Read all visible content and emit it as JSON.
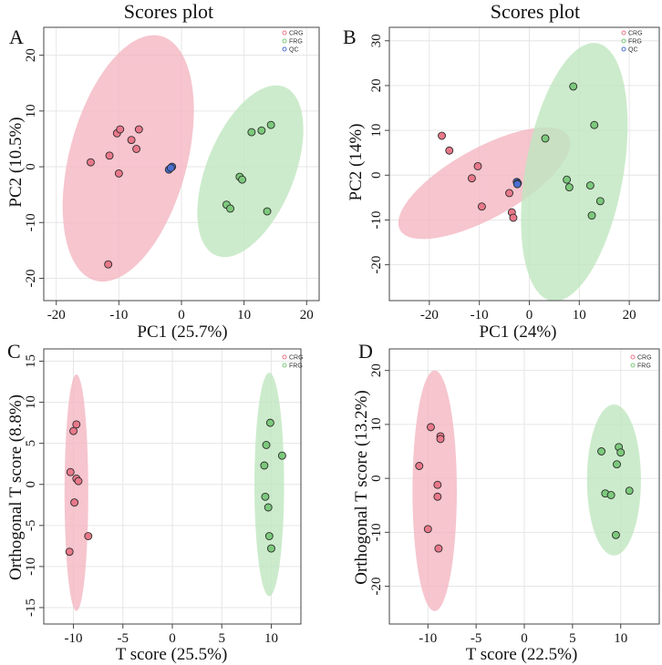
{
  "chart_data": [
    {
      "type": "scatter",
      "panel": "A",
      "title": "Scores plot",
      "xlabel": "PC1 (25.7%)",
      "ylabel": "PC2 (10.5%)",
      "xlim": [
        -22,
        22
      ],
      "ylim": [
        -24,
        25
      ],
      "xticks": [
        -20,
        -10,
        0,
        10,
        20
      ],
      "yticks": [
        -20,
        -10,
        0,
        10,
        20
      ],
      "legend": [
        "CRG",
        "FRG",
        "QC"
      ],
      "series": [
        {
          "name": "CRG",
          "color": "#e8788a",
          "points": [
            [
              -14.5,
              0.8
            ],
            [
              -11.5,
              2
            ],
            [
              -10.3,
              6
            ],
            [
              -9.8,
              6.7
            ],
            [
              -10,
              -1.2
            ],
            [
              -8,
              4.8
            ],
            [
              -7.2,
              3.2
            ],
            [
              -6.8,
              6.7
            ],
            [
              -11.7,
              -17.5
            ]
          ]
        },
        {
          "name": "FRG",
          "color": "#7cc97c",
          "points": [
            [
              7.2,
              -6.8
            ],
            [
              7.8,
              -7.5
            ],
            [
              9.3,
              -1.8
            ],
            [
              9.7,
              -2.3
            ],
            [
              11.2,
              6.2
            ],
            [
              12.8,
              6.5
            ],
            [
              14.3,
              7.5
            ],
            [
              13.7,
              -8
            ]
          ]
        },
        {
          "name": "QC",
          "color": "#4a6fd1",
          "points": [
            [
              -2,
              -0.5
            ],
            [
              -1.5,
              0
            ],
            [
              -1.7,
              -0.2
            ]
          ]
        }
      ],
      "ellipses": [
        {
          "group": "CRG",
          "color": "#f4b6c2",
          "cx": -8.5,
          "cy": 1.5,
          "rx": 9.4,
          "ry": 22.7,
          "angle": 15
        },
        {
          "group": "FRG",
          "color": "#bfe6bf",
          "cx": 11,
          "cy": -0.8,
          "rx": 7,
          "ry": 16.3,
          "angle": 22
        }
      ]
    },
    {
      "type": "scatter",
      "panel": "B",
      "title": "Scores plot",
      "xlabel": "PC1 (24%)",
      "ylabel": "PC2 (14%)",
      "xlim": [
        -28,
        26
      ],
      "ylim": [
        -28,
        33
      ],
      "xticks": [
        -20,
        -10,
        0,
        10,
        20
      ],
      "yticks": [
        -20,
        -10,
        0,
        10,
        20,
        30
      ],
      "legend": [
        "CRG",
        "FRG",
        "QC"
      ],
      "series": [
        {
          "name": "CRG",
          "color": "#e8788a",
          "points": [
            [
              -17.5,
              8.8
            ],
            [
              -16,
              5.5
            ],
            [
              -10.3,
              2
            ],
            [
              -11.5,
              -0.7
            ],
            [
              -9.5,
              -7
            ],
            [
              -4,
              -4
            ],
            [
              -3.5,
              -8.3
            ],
            [
              -3.2,
              -9.5
            ]
          ]
        },
        {
          "name": "FRG",
          "color": "#7cc97c",
          "points": [
            [
              3.2,
              8.2
            ],
            [
              8.8,
              19.8
            ],
            [
              7.5,
              -1
            ],
            [
              8,
              -2.7
            ],
            [
              13,
              11.2
            ],
            [
              12.2,
              -2.3
            ],
            [
              14.2,
              -5.8
            ],
            [
              12.5,
              -9
            ]
          ]
        },
        {
          "name": "QC",
          "color": "#4a6fd1",
          "points": [
            [
              -2.5,
              -1.5
            ],
            [
              -2.3,
              -1.8
            ],
            [
              -2.4,
              -2
            ]
          ]
        }
      ],
      "ellipses": [
        {
          "group": "CRG",
          "color": "#f4b6c2",
          "cx": -9,
          "cy": -1.8,
          "rx": 7,
          "ry": 21.5,
          "angle": 61
        },
        {
          "group": "FRG",
          "color": "#bfe6bf",
          "cx": 9,
          "cy": 0.7,
          "rx": 9.8,
          "ry": 29.2,
          "angle": 10
        }
      ]
    },
    {
      "type": "scatter",
      "panel": "C",
      "title": "",
      "xlabel": "T score (25.5%)",
      "ylabel": "Orthogonal T score (8.8%)",
      "xlim": [
        -13,
        13
      ],
      "ylim": [
        -17,
        16.5
      ],
      "xticks": [
        -10,
        -5,
        0,
        5,
        10
      ],
      "yticks": [
        -15,
        -10,
        -5,
        0,
        5,
        10,
        15
      ],
      "legend": [
        "CRG",
        "FRG"
      ],
      "series": [
        {
          "name": "CRG",
          "color": "#e8788a",
          "points": [
            [
              -9.7,
              7.3
            ],
            [
              -10,
              6.5
            ],
            [
              -10.3,
              1.5
            ],
            [
              -9.7,
              0.7
            ],
            [
              -9.5,
              0.4
            ],
            [
              -9.9,
              -2.2
            ],
            [
              -8.5,
              -6.3
            ],
            [
              -10.4,
              -8.2
            ]
          ]
        },
        {
          "name": "FRG",
          "color": "#7cc97c",
          "points": [
            [
              9.9,
              7.5
            ],
            [
              9.5,
              4.8
            ],
            [
              11.1,
              3.5
            ],
            [
              9.3,
              2.3
            ],
            [
              9.4,
              -1.5
            ],
            [
              9.7,
              -2.8
            ],
            [
              9.8,
              -6.3
            ],
            [
              10,
              -7.8
            ]
          ]
        }
      ],
      "ellipses": [
        {
          "group": "CRG",
          "color": "#f4b6c2",
          "cx": -9.7,
          "cy": -1,
          "rx": 1.2,
          "ry": 14.4,
          "angle": 0
        },
        {
          "group": "FRG",
          "color": "#bfe6bf",
          "cx": 9.8,
          "cy": 0,
          "rx": 1.5,
          "ry": 13.6,
          "angle": 0
        }
      ]
    },
    {
      "type": "scatter",
      "panel": "D",
      "title": "",
      "xlabel": "T score (22.5%)",
      "ylabel": "Orthogonal T score (13.2%)",
      "xlim": [
        -14,
        14
      ],
      "ylim": [
        -27,
        24
      ],
      "xticks": [
        -10,
        -5,
        0,
        5,
        10
      ],
      "yticks": [
        -20,
        -10,
        0,
        10,
        20
      ],
      "legend": [
        "CRG",
        "FRG"
      ],
      "series": [
        {
          "name": "CRG",
          "color": "#e8788a",
          "points": [
            [
              -9.7,
              9.5
            ],
            [
              -8.7,
              7.8
            ],
            [
              -8.7,
              7.3
            ],
            [
              -10.9,
              2.3
            ],
            [
              -9,
              -1.2
            ],
            [
              -9,
              -3.4
            ],
            [
              -10,
              -9.4
            ],
            [
              -8.9,
              -13
            ]
          ]
        },
        {
          "name": "FRG",
          "color": "#7cc97c",
          "points": [
            [
              9.8,
              5.8
            ],
            [
              8,
              5
            ],
            [
              10,
              4.8
            ],
            [
              9.6,
              2.6
            ],
            [
              10.9,
              -2.3
            ],
            [
              8.4,
              -2.8
            ],
            [
              9,
              -3.1
            ],
            [
              9.5,
              -10.5
            ]
          ]
        }
      ],
      "ellipses": [
        {
          "group": "CRG",
          "color": "#f4b6c2",
          "cx": -9.3,
          "cy": -2.3,
          "rx": 2.3,
          "ry": 22.3,
          "angle": 0
        },
        {
          "group": "FRG",
          "color": "#bfe6bf",
          "cx": 9.3,
          "cy": -0.3,
          "rx": 2.8,
          "ry": 14,
          "angle": 0
        }
      ]
    }
  ]
}
